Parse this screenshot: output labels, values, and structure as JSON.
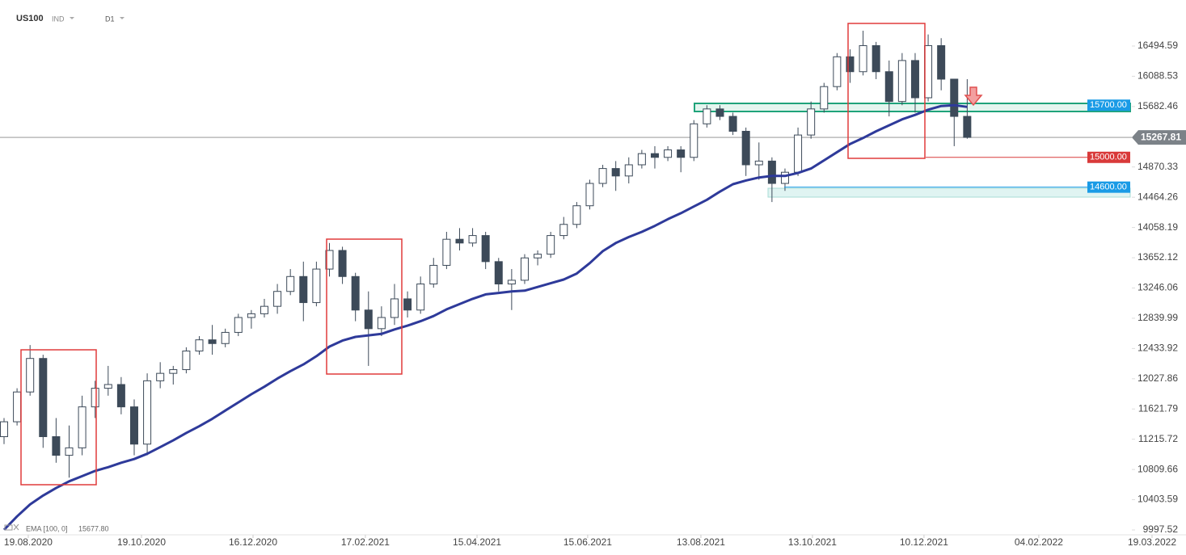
{
  "chart_data": {
    "type": "candlestick",
    "symbol": "US100",
    "market": "IND",
    "interval": "D1",
    "ohlc": [
      [
        11250,
        11500,
        11150,
        11450
      ],
      [
        11450,
        11900,
        11400,
        11850
      ],
      [
        11850,
        12480,
        11800,
        12300
      ],
      [
        12300,
        12350,
        11100,
        11250
      ],
      [
        11250,
        11500,
        10900,
        11000
      ],
      [
        11000,
        11400,
        10700,
        11100
      ],
      [
        11100,
        11800,
        11000,
        11650
      ],
      [
        11650,
        12000,
        11500,
        11900
      ],
      [
        11900,
        12200,
        11800,
        11950
      ],
      [
        11950,
        12050,
        11550,
        11650
      ],
      [
        11650,
        11750,
        11000,
        11150
      ],
      [
        11150,
        12100,
        11000,
        12000
      ],
      [
        12000,
        12250,
        11900,
        12100
      ],
      [
        12100,
        12200,
        11950,
        12150
      ],
      [
        12150,
        12450,
        12100,
        12400
      ],
      [
        12400,
        12600,
        12350,
        12550
      ],
      [
        12550,
        12750,
        12350,
        12500
      ],
      [
        12500,
        12700,
        12450,
        12650
      ],
      [
        12650,
        12900,
        12600,
        12850
      ],
      [
        12850,
        12950,
        12700,
        12900
      ],
      [
        12900,
        13100,
        12850,
        13000
      ],
      [
        13000,
        13300,
        12900,
        13200
      ],
      [
        13200,
        13500,
        13150,
        13400
      ],
      [
        13400,
        13600,
        12800,
        13050
      ],
      [
        13050,
        13600,
        13000,
        13500
      ],
      [
        13500,
        13850,
        13400,
        13750
      ],
      [
        13750,
        13800,
        13300,
        13400
      ],
      [
        13400,
        13450,
        12800,
        12950
      ],
      [
        12950,
        13200,
        12200,
        12700
      ],
      [
        12700,
        13000,
        12600,
        12850
      ],
      [
        12850,
        13300,
        12750,
        13100
      ],
      [
        13100,
        13200,
        12850,
        12950
      ],
      [
        12950,
        13400,
        12900,
        13300
      ],
      [
        13300,
        13650,
        13250,
        13550
      ],
      [
        13550,
        14000,
        13500,
        13900
      ],
      [
        13900,
        14050,
        13750,
        13850
      ],
      [
        13850,
        14050,
        13800,
        13950
      ],
      [
        13950,
        14000,
        13500,
        13600
      ],
      [
        13600,
        13650,
        13200,
        13300
      ],
      [
        13300,
        13500,
        12950,
        13350
      ],
      [
        13350,
        13700,
        13300,
        13650
      ],
      [
        13650,
        13750,
        13550,
        13700
      ],
      [
        13700,
        14000,
        13650,
        13950
      ],
      [
        13950,
        14200,
        13900,
        14100
      ],
      [
        14100,
        14400,
        14050,
        14350
      ],
      [
        14350,
        14700,
        14300,
        14650
      ],
      [
        14650,
        14900,
        14600,
        14850
      ],
      [
        14850,
        14950,
        14550,
        14750
      ],
      [
        14750,
        15000,
        14650,
        14900
      ],
      [
        14900,
        15100,
        14850,
        15050
      ],
      [
        15050,
        15150,
        14850,
        15000
      ],
      [
        15000,
        15150,
        14950,
        15100
      ],
      [
        15100,
        15150,
        14800,
        15000
      ],
      [
        15000,
        15500,
        14950,
        15450
      ],
      [
        15450,
        15700,
        15400,
        15650
      ],
      [
        15650,
        15700,
        15500,
        15550
      ],
      [
        15550,
        15600,
        15300,
        15350
      ],
      [
        15350,
        15400,
        14750,
        14900
      ],
      [
        14900,
        15200,
        14700,
        14950
      ],
      [
        14950,
        15000,
        14400,
        14650
      ],
      [
        14650,
        14850,
        14550,
        14800
      ],
      [
        14800,
        15400,
        14750,
        15300
      ],
      [
        15300,
        15750,
        15250,
        15650
      ],
      [
        15650,
        16000,
        15600,
        15950
      ],
      [
        15950,
        16400,
        15900,
        16350
      ],
      [
        16350,
        16450,
        16000,
        16150
      ],
      [
        16150,
        16700,
        16100,
        16500
      ],
      [
        16500,
        16550,
        16050,
        16150
      ],
      [
        16150,
        16300,
        15550,
        15750
      ],
      [
        15750,
        16400,
        15700,
        16300
      ],
      [
        16300,
        16400,
        15600,
        15800
      ],
      [
        15800,
        16650,
        15750,
        16500
      ],
      [
        16500,
        16600,
        15900,
        16050
      ],
      [
        16050,
        16050,
        15150,
        15550
      ],
      [
        15550,
        16050,
        15250,
        15267.81
      ]
    ],
    "up_color": "#ffffff",
    "down_color": "#3d4a59",
    "ema": {
      "name": "EMA [100, 0]",
      "color": "#2e3a9a",
      "current": {
        "value": 15677.8,
        "label": "15677.80"
      },
      "values": [
        10000,
        10180,
        10340,
        10460,
        10560,
        10650,
        10720,
        10790,
        10840,
        10900,
        10950,
        11020,
        11110,
        11200,
        11300,
        11390,
        11490,
        11600,
        11710,
        11820,
        11920,
        12030,
        12130,
        12220,
        12330,
        12460,
        12540,
        12590,
        12610,
        12630,
        12690,
        12740,
        12800,
        12870,
        12960,
        13030,
        13100,
        13160,
        13180,
        13200,
        13210,
        13260,
        13310,
        13360,
        13440,
        13580,
        13740,
        13850,
        13930,
        14000,
        14080,
        14170,
        14250,
        14340,
        14430,
        14540,
        14640,
        14690,
        14730,
        14750,
        14750,
        14790,
        14850,
        14960,
        15070,
        15180,
        15260,
        15350,
        15430,
        15510,
        15570,
        15640,
        15690,
        15700,
        15677.8
      ]
    },
    "last_price": 15267.81,
    "levels": [
      {
        "value": 15700,
        "label": "15700.00",
        "color": "#1a9be6"
      },
      {
        "value": 15000,
        "label": "15000.00",
        "color": "#d93a3a"
      },
      {
        "value": 14600,
        "label": "14600.00",
        "color": "#1a9be6"
      }
    ],
    "ylim": [
      9932.4,
      17112.5
    ],
    "yticks": [
      9997.52,
      10403.59,
      10809.66,
      11215.72,
      11621.79,
      12027.86,
      12433.92,
      12839.99,
      13246.06,
      13652.12,
      14058.19,
      14464.26,
      14870.33,
      15682.46,
      16088.53,
      16494.59
    ],
    "xlim": [
      -0.31,
      90.81
    ],
    "xticks": [
      {
        "value": 1.86,
        "label": "19.08.2020"
      },
      {
        "value": 10.56,
        "label": "19.10.2020"
      },
      {
        "value": 19.13,
        "label": "16.12.2020"
      },
      {
        "value": 27.76,
        "label": "17.02.2021"
      },
      {
        "value": 36.34,
        "label": "15.04.2021"
      },
      {
        "value": 44.84,
        "label": "15.06.2021"
      },
      {
        "value": 53.54,
        "label": "13.08.2021"
      },
      {
        "value": 62.11,
        "label": "13.10.2021"
      },
      {
        "value": 70.68,
        "label": "10.12.2021"
      },
      {
        "value": 79.5,
        "label": "04.02.2022"
      },
      {
        "value": 88.2,
        "label": "19.03.2022"
      }
    ]
  }
}
